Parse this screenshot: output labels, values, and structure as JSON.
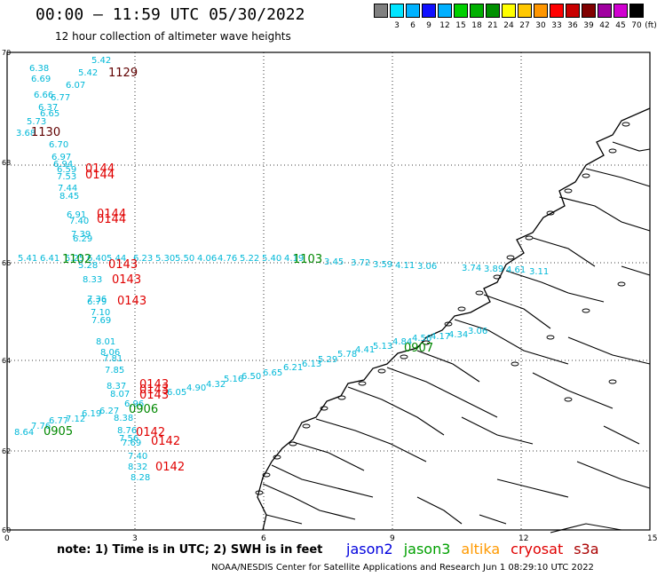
{
  "header": {
    "title": "00:00 — 11:59 UTC 05/30/2022",
    "subtitle": "12 hour collection of altimeter wave heights"
  },
  "color_scale": {
    "unit_label": "(ft)",
    "bins": [
      {
        "label": "",
        "color": "#808080"
      },
      {
        "label": "3",
        "color": "#00e5ff"
      },
      {
        "label": "6",
        "color": "#00b2ff"
      },
      {
        "label": "9",
        "color": "#1010ff"
      },
      {
        "label": "12",
        "color": "#00b0ff"
      },
      {
        "label": "15",
        "color": "#00d000"
      },
      {
        "label": "18",
        "color": "#00b000"
      },
      {
        "label": "21",
        "color": "#009000"
      },
      {
        "label": "24",
        "color": "#ffff00"
      },
      {
        "label": "27",
        "color": "#ffc800"
      },
      {
        "label": "30",
        "color": "#ff9600"
      },
      {
        "label": "33",
        "color": "#ff0000"
      },
      {
        "label": "36",
        "color": "#c80000"
      },
      {
        "label": "39",
        "color": "#800000"
      },
      {
        "label": "42",
        "color": "#a000a0"
      },
      {
        "label": "45",
        "color": "#d000d0"
      },
      {
        "label": "70",
        "color": "#000000"
      }
    ]
  },
  "map": {
    "lat_labels": [
      "70",
      "68",
      "66",
      "64",
      "62",
      "60"
    ],
    "lon_labels": [
      "0",
      "3",
      "6",
      "9",
      "12",
      "15"
    ],
    "track_colors": {
      "cyan": "#00b8d8",
      "red": "#e00000",
      "green": "#008800",
      "dark": "#600000"
    },
    "wave_heights": [
      {
        "v": "5.42",
        "c": "cyan"
      },
      {
        "v": "6.38",
        "c": "cyan"
      },
      {
        "v": "5.42",
        "c": "cyan"
      },
      {
        "v": "6.69",
        "c": "cyan"
      },
      {
        "v": "6.07",
        "c": "cyan"
      },
      {
        "v": "6.66",
        "c": "cyan"
      },
      {
        "v": "6.77",
        "c": "cyan"
      },
      {
        "v": "6.37",
        "c": "cyan"
      },
      {
        "v": "6.65",
        "c": "cyan"
      },
      {
        "v": "5.73",
        "c": "cyan"
      },
      {
        "v": "3.68",
        "c": "cyan"
      },
      {
        "v": "6.70",
        "c": "cyan"
      },
      {
        "v": "6.97",
        "c": "cyan"
      },
      {
        "v": "6.94",
        "c": "cyan"
      },
      {
        "v": "6.59",
        "c": "cyan"
      },
      {
        "v": "7.53",
        "c": "cyan"
      },
      {
        "v": "7.44",
        "c": "cyan"
      },
      {
        "v": "8.45",
        "c": "cyan"
      },
      {
        "v": "6.91",
        "c": "cyan"
      },
      {
        "v": "7.40",
        "c": "cyan"
      },
      {
        "v": "7.39",
        "c": "cyan"
      },
      {
        "v": "6.29",
        "c": "cyan"
      },
      {
        "v": "5.41",
        "c": "cyan"
      },
      {
        "v": "6.41",
        "c": "cyan"
      },
      {
        "v": "5.25",
        "c": "cyan"
      },
      {
        "v": "6.40",
        "c": "cyan"
      },
      {
        "v": "5.44",
        "c": "cyan"
      },
      {
        "v": "6.23",
        "c": "cyan"
      },
      {
        "v": "5.30",
        "c": "cyan"
      },
      {
        "v": "5.50",
        "c": "cyan"
      },
      {
        "v": "4.06",
        "c": "cyan"
      },
      {
        "v": "4.76",
        "c": "cyan"
      },
      {
        "v": "5.22",
        "c": "cyan"
      },
      {
        "v": "5.40",
        "c": "cyan"
      },
      {
        "v": "4.19",
        "c": "cyan"
      },
      {
        "v": "3.45",
        "c": "cyan"
      },
      {
        "v": "3.72",
        "c": "cyan"
      },
      {
        "v": "3.59",
        "c": "cyan"
      },
      {
        "v": "4.11",
        "c": "cyan"
      },
      {
        "v": "3.06",
        "c": "cyan"
      },
      {
        "v": "3.74",
        "c": "cyan"
      },
      {
        "v": "3.89",
        "c": "cyan"
      },
      {
        "v": "4.61",
        "c": "cyan"
      },
      {
        "v": "3.11",
        "c": "cyan"
      },
      {
        "v": "5.28",
        "c": "cyan"
      },
      {
        "v": "8.33",
        "c": "cyan"
      },
      {
        "v": "7.36",
        "c": "cyan"
      },
      {
        "v": "6.79",
        "c": "cyan"
      },
      {
        "v": "7.10",
        "c": "cyan"
      },
      {
        "v": "7.69",
        "c": "cyan"
      },
      {
        "v": "8.01",
        "c": "cyan"
      },
      {
        "v": "8.06",
        "c": "cyan"
      },
      {
        "v": "7.81",
        "c": "cyan"
      },
      {
        "v": "7.85",
        "c": "cyan"
      },
      {
        "v": "8.37",
        "c": "cyan"
      },
      {
        "v": "8.07",
        "c": "cyan"
      },
      {
        "v": "6.96",
        "c": "cyan"
      },
      {
        "v": "6.27",
        "c": "cyan"
      },
      {
        "v": "6.19",
        "c": "cyan"
      },
      {
        "v": "8.38",
        "c": "cyan"
      },
      {
        "v": "7.12",
        "c": "cyan"
      },
      {
        "v": "6.77",
        "c": "cyan"
      },
      {
        "v": "7.76",
        "c": "cyan"
      },
      {
        "v": "8.64",
        "c": "cyan"
      },
      {
        "v": "8.76",
        "c": "cyan"
      },
      {
        "v": "7.56",
        "c": "cyan"
      },
      {
        "v": "7.69",
        "c": "cyan"
      },
      {
        "v": "7.40",
        "c": "cyan"
      },
      {
        "v": "8.32",
        "c": "cyan"
      },
      {
        "v": "8.28",
        "c": "cyan"
      },
      {
        "v": "6.05",
        "c": "cyan"
      },
      {
        "v": "4.90",
        "c": "cyan"
      },
      {
        "v": "4.32",
        "c": "cyan"
      },
      {
        "v": "5.16",
        "c": "cyan"
      },
      {
        "v": "6.50",
        "c": "cyan"
      },
      {
        "v": "6.65",
        "c": "cyan"
      },
      {
        "v": "6.21",
        "c": "cyan"
      },
      {
        "v": "6.13",
        "c": "cyan"
      },
      {
        "v": "5.29",
        "c": "cyan"
      },
      {
        "v": "5.78",
        "c": "cyan"
      },
      {
        "v": "4.41",
        "c": "cyan"
      },
      {
        "v": "5.13",
        "c": "cyan"
      },
      {
        "v": "4.84",
        "c": "cyan"
      },
      {
        "v": "4.56",
        "c": "cyan"
      },
      {
        "v": "4.17",
        "c": "cyan"
      },
      {
        "v": "4.34",
        "c": "cyan"
      },
      {
        "v": "3.06",
        "c": "cyan"
      }
    ],
    "time_labels": [
      {
        "v": "1129",
        "c": "dark"
      },
      {
        "v": "1130",
        "c": "dark"
      },
      {
        "v": "0144",
        "c": "red"
      },
      {
        "v": "0144",
        "c": "red"
      },
      {
        "v": "0144",
        "c": "red"
      },
      {
        "v": "0144",
        "c": "red"
      },
      {
        "v": "0143",
        "c": "red"
      },
      {
        "v": "0143",
        "c": "red"
      },
      {
        "v": "0143",
        "c": "red"
      },
      {
        "v": "0143",
        "c": "red"
      },
      {
        "v": "0143",
        "c": "red"
      },
      {
        "v": "0143",
        "c": "red"
      },
      {
        "v": "0142",
        "c": "red"
      },
      {
        "v": "0142",
        "c": "red"
      },
      {
        "v": "0142",
        "c": "red"
      },
      {
        "v": "1102",
        "c": "green"
      },
      {
        "v": "1103",
        "c": "green"
      },
      {
        "v": "0907",
        "c": "green"
      },
      {
        "v": "0906",
        "c": "green"
      },
      {
        "v": "0905",
        "c": "green"
      }
    ]
  },
  "footer": {
    "note": "note:  1) Time is in UTC;  2) SWH is in feet",
    "legend": [
      {
        "label": "jason2",
        "color": "#0000dd"
      },
      {
        "label": "jason3",
        "color": "#00a000"
      },
      {
        "label": "altika",
        "color": "#ff9900"
      },
      {
        "label": "cryosat",
        "color": "#e00000"
      },
      {
        "label": "s3a",
        "color": "#aa0000"
      }
    ],
    "credit": "NOAA/NESDIS Center for Satellite Applications and Research    Jun  1 08:29:10 UTC 2022"
  }
}
